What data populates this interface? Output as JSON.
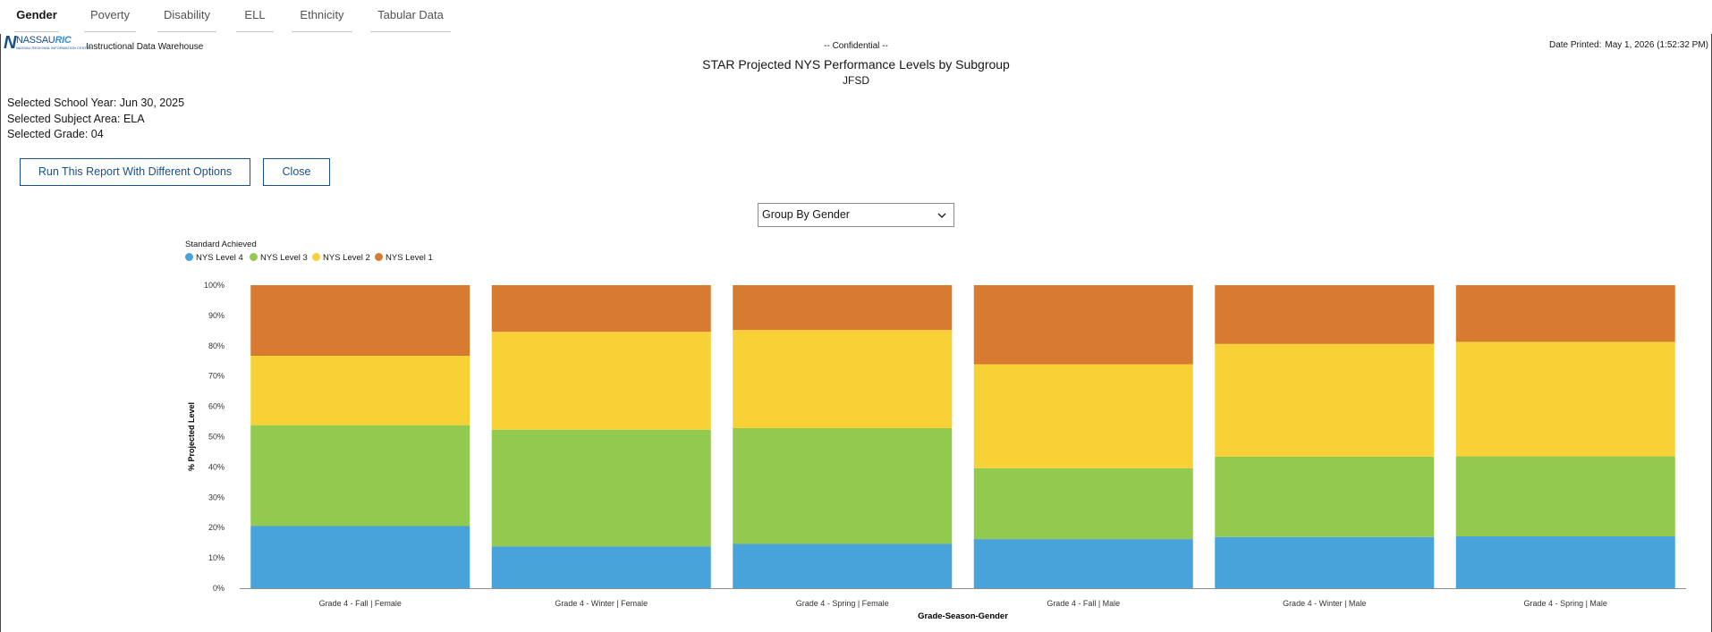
{
  "tabs": [
    {
      "label": "Gender",
      "active": true
    },
    {
      "label": "Poverty",
      "active": false
    },
    {
      "label": "Disability",
      "active": false
    },
    {
      "label": "ELL",
      "active": false
    },
    {
      "label": "Ethnicity",
      "active": false
    },
    {
      "label": "Tabular Data",
      "active": false
    }
  ],
  "header": {
    "logo_n": "N",
    "logo_word_a": "NASSAU",
    "logo_word_b": "RIC",
    "logo_tagline": "NASSAU REGIONAL INFORMATION CENTER",
    "app_name": "Instructional Data Warehouse",
    "confidential": "-- Confidential --",
    "date_printed_label": "Date Printed:",
    "date_printed_value": "May 1, 2026",
    "time_printed": "(1:52:32 PM)"
  },
  "report": {
    "title": "STAR Projected NYS Performance Levels by Subgroup",
    "subtitle": "JFSD"
  },
  "params": {
    "school_year": "Selected School Year: Jun 30, 2025",
    "subject_area": "Selected Subject Area: ELA",
    "grade": "Selected Grade: 04"
  },
  "buttons": {
    "run_label": "Run This Report With Different Options",
    "close_label": "Close"
  },
  "group_select": {
    "selected": "Group By Gender"
  },
  "colors": {
    "accent": "#1a4f8a",
    "level4": "#47a3d9",
    "level3": "#92c94f",
    "level2": "#f8d137",
    "level1": "#d67b30"
  },
  "chart_data": {
    "type": "bar",
    "stacked": true,
    "legend_title": "Standard Achieved",
    "legend_position": "top-left",
    "xlabel": "Grade-Season-Gender",
    "ylabel": "% Projected Level",
    "ylim": [
      0,
      100
    ],
    "yticks": [
      "0%",
      "10%",
      "20%",
      "30%",
      "40%",
      "50%",
      "60%",
      "70%",
      "80%",
      "90%",
      "100%"
    ],
    "grid": false,
    "categories": [
      "Grade 4 - Fall | Female",
      "Grade 4 - Winter | Female",
      "Grade 4 - Spring | Female",
      "Grade 4 - Fall | Male",
      "Grade 4 - Winter | Male",
      "Grade 4 - Spring | Male"
    ],
    "series": [
      {
        "name": "NYS Level 4",
        "values": [
          20.5,
          13.8,
          14.6,
          16.2,
          16.9,
          17.1
        ]
      },
      {
        "name": "NYS Level 3",
        "values": [
          33.3,
          38.5,
          38.2,
          23.4,
          26.5,
          26.4
        ]
      },
      {
        "name": "NYS Level 2",
        "values": [
          22.9,
          32.3,
          32.4,
          34.3,
          37.2,
          37.8
        ]
      },
      {
        "name": "NYS Level 1",
        "values": [
          23.3,
          15.4,
          14.8,
          26.1,
          19.4,
          18.7
        ]
      }
    ]
  }
}
